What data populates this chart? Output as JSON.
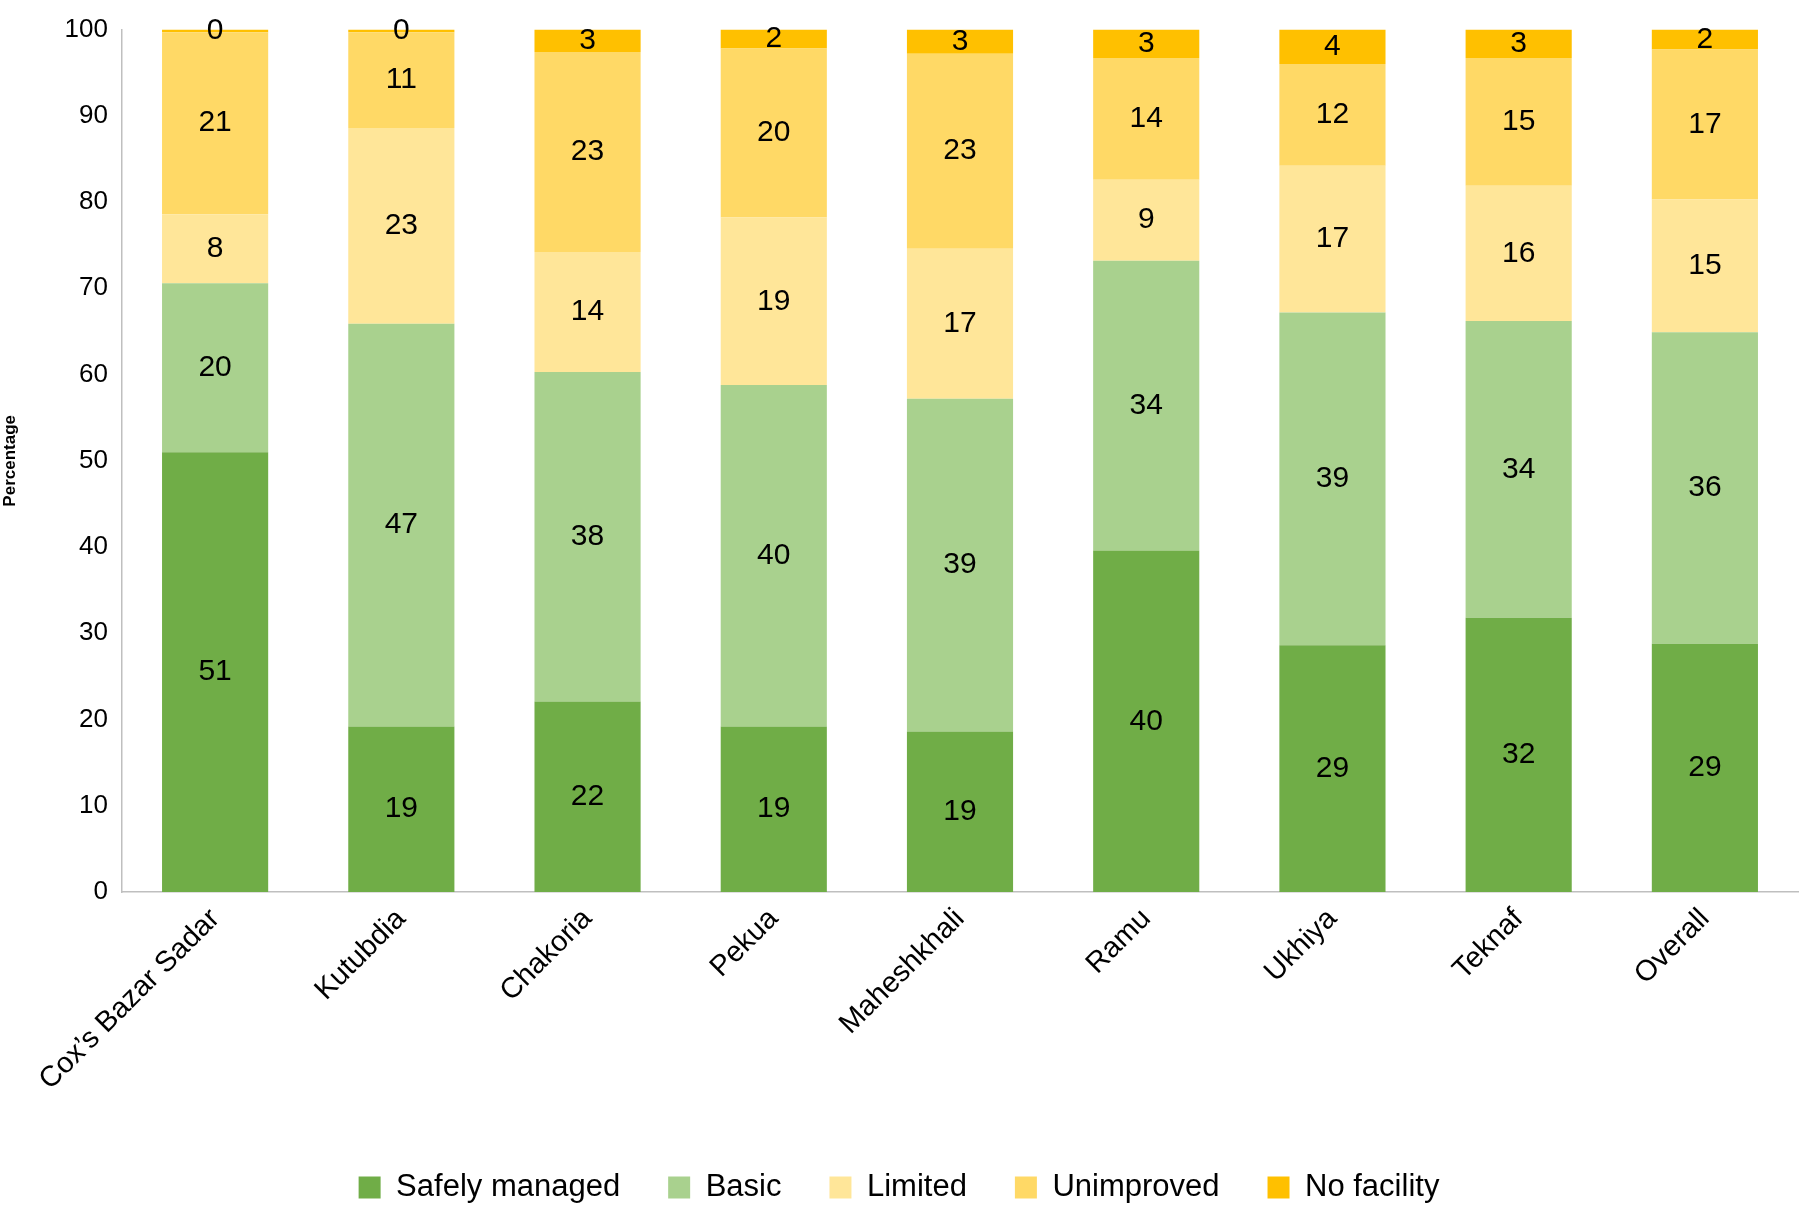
{
  "chart_data": {
    "type": "bar",
    "ylabel": "Percentage",
    "categories": [
      "Cox’s Bazar Sadar",
      "Kutubdia",
      "Chakoria",
      "Pekua",
      "Maheshkhali",
      "Ramu",
      "Ukhiya",
      "Teknaf",
      "Overall"
    ],
    "stacked": true,
    "ylim": [
      0,
      100
    ],
    "yticks": [
      0,
      10,
      20,
      30,
      40,
      50,
      60,
      70,
      80,
      90,
      100
    ],
    "grid": false,
    "legend": "bottom",
    "series": [
      {
        "name": "Safely managed",
        "color": "#70ad47",
        "values": [
          51.0,
          19.2,
          22.1,
          19.2,
          18.6,
          39.6,
          28.6,
          31.8,
          28.8
        ],
        "value_labels": [
          "51",
          "19",
          "22",
          "19",
          "19",
          "40",
          "29",
          "32",
          "29"
        ]
      },
      {
        "name": "Basic",
        "color": "#a9d18e",
        "values": [
          19.6,
          46.7,
          38.2,
          39.6,
          38.6,
          33.6,
          38.6,
          34.4,
          36.1
        ],
        "value_labels": [
          "20",
          "47",
          "38",
          "40",
          "39",
          "34",
          "39",
          "34",
          "36"
        ]
      },
      {
        "name": "Limited",
        "color": "#ffe699",
        "values": [
          8.0,
          22.7,
          13.9,
          19.4,
          17.4,
          9.4,
          17.0,
          15.7,
          15.4
        ],
        "value_labels": [
          "8",
          "23",
          "14",
          "19",
          "17",
          "9",
          "17",
          "16",
          "15"
        ]
      },
      {
        "name": "Unimproved",
        "color": "#ffd966",
        "values": [
          21.1,
          11.1,
          23.2,
          19.6,
          22.6,
          14.1,
          11.8,
          14.8,
          17.4
        ],
        "value_labels": [
          "21",
          "11",
          "23",
          "20",
          "23",
          "14",
          "12",
          "15",
          "17"
        ]
      },
      {
        "name": "No facility",
        "color": "#ffc000",
        "values": [
          0.3,
          0.3,
          2.6,
          2.2,
          2.8,
          3.3,
          4.0,
          3.3,
          2.3
        ],
        "value_labels": [
          "0",
          "0",
          "3",
          "2",
          "3",
          "3",
          "4",
          "3",
          "2"
        ]
      }
    ]
  }
}
